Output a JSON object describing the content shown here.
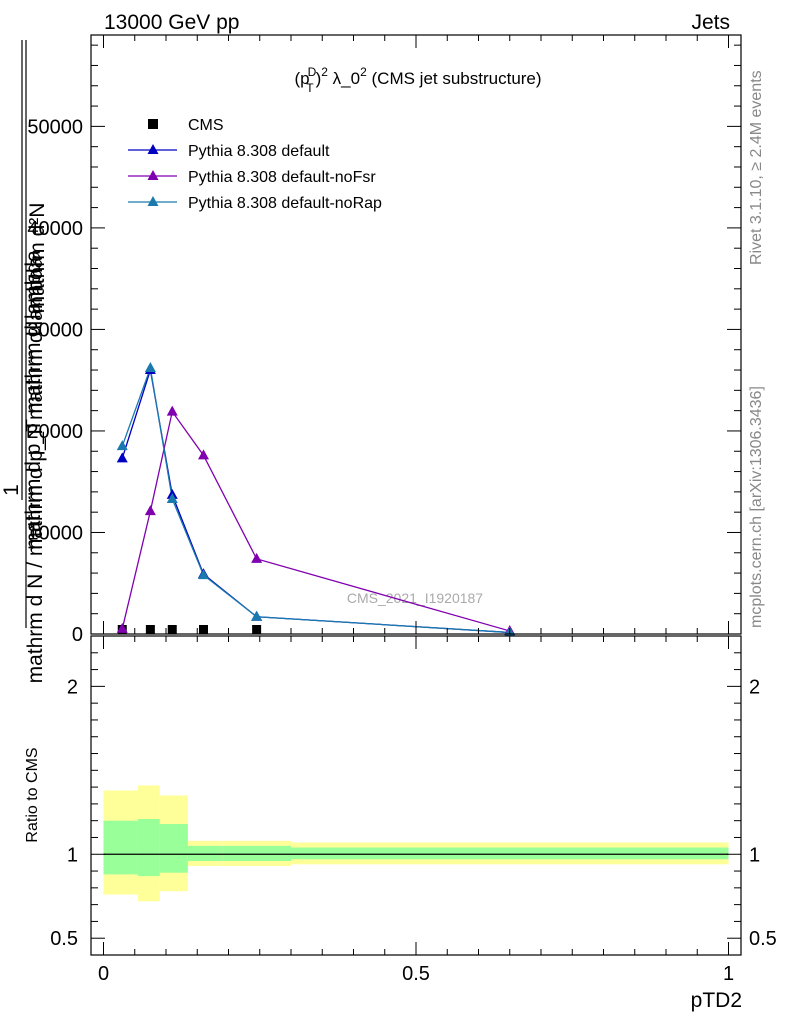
{
  "header": {
    "left": "13000 GeV pp",
    "right": "Jets"
  },
  "side": {
    "rivet": "Rivet 3.1.10, ≥ 2.4M events",
    "mcplots": "mcplots.cern.ch [arXiv:1306.3436]"
  },
  "watermark": "CMS_2021_I1920187",
  "plot_title_parts": {
    "a": "(p",
    "sup1": "D",
    "sub1": "T",
    "b": ")",
    "sup2": "2",
    "c": " λ_0",
    "sup3": "2",
    "d": " (CMS jet substructure)"
  },
  "ylabel_main": {
    "num_one": "1",
    "frac_a_num": "mathrm d²N",
    "frac_a_den": "mathrm d p_T mathrm d lambda",
    "frac_b": "mathrm d N / mathrm d p_T mathrm d lambda"
  },
  "ylabel_ratio": "Ratio to CMS",
  "xlabel": "pTD2",
  "colors": {
    "CMS": "#000000",
    "default": "#0000c0",
    "noFsr": "#8000b0",
    "noRap": "#1a7aae",
    "band_outer": "#ffff99",
    "band_inner": "#99ff99"
  },
  "chart_data": [
    {
      "type": "line",
      "panel": "main",
      "x_range": [
        -0.02,
        1.02
      ],
      "ylim": [
        0,
        59000
      ],
      "yticks": [
        0,
        10000,
        20000,
        30000,
        40000,
        50000
      ],
      "ytick_labels": [
        "0",
        "10000",
        "20000",
        "30000",
        "40000",
        "50000"
      ],
      "series": [
        {
          "name": "CMS",
          "marker": "square",
          "x": [
            0.03,
            0.075,
            0.11,
            0.16,
            0.245
          ],
          "y": [
            0,
            0,
            0,
            0,
            0
          ]
        },
        {
          "name": "Pythia 8.308 default",
          "marker": "triangle",
          "x": [
            0.03,
            0.075,
            0.11,
            0.16,
            0.245,
            0.65
          ],
          "y": [
            17300,
            26000,
            13700,
            5900,
            1700,
            150
          ]
        },
        {
          "name": "Pythia 8.308 default-noFsr",
          "marker": "triangle",
          "x": [
            0.03,
            0.075,
            0.11,
            0.16,
            0.245,
            0.65
          ],
          "y": [
            500,
            12100,
            21900,
            17600,
            7400,
            300
          ]
        },
        {
          "name": "Pythia 8.308 default-noRap",
          "marker": "triangle",
          "x": [
            0.03,
            0.075,
            0.11,
            0.16,
            0.245,
            0.65
          ],
          "y": [
            18500,
            26200,
            13300,
            5800,
            1700,
            150
          ]
        }
      ]
    },
    {
      "type": "area",
      "panel": "ratio",
      "x_range": [
        -0.02,
        1.02
      ],
      "ylim": [
        0.4,
        2.3
      ],
      "xticks": [
        0,
        0.5,
        1
      ],
      "xtick_labels": [
        "0",
        "0.5",
        "1"
      ],
      "yticks": [
        0.5,
        1,
        2
      ],
      "ytick_labels": [
        "0.5",
        "1",
        "2"
      ],
      "reference_line": 1,
      "bins": [
        {
          "x0": 0.0,
          "x1": 0.055,
          "outer": [
            0.76,
            1.38
          ],
          "inner": [
            0.88,
            1.2
          ]
        },
        {
          "x0": 0.055,
          "x1": 0.09,
          "outer": [
            0.72,
            1.41
          ],
          "inner": [
            0.87,
            1.21
          ]
        },
        {
          "x0": 0.09,
          "x1": 0.135,
          "outer": [
            0.78,
            1.35
          ],
          "inner": [
            0.89,
            1.18
          ]
        },
        {
          "x0": 0.135,
          "x1": 0.19,
          "outer": [
            0.93,
            1.08
          ],
          "inner": [
            0.96,
            1.05
          ]
        },
        {
          "x0": 0.19,
          "x1": 0.3,
          "outer": [
            0.93,
            1.08
          ],
          "inner": [
            0.96,
            1.05
          ]
        },
        {
          "x0": 0.3,
          "x1": 1.0,
          "outer": [
            0.94,
            1.07
          ],
          "inner": [
            0.97,
            1.04
          ]
        }
      ]
    }
  ]
}
